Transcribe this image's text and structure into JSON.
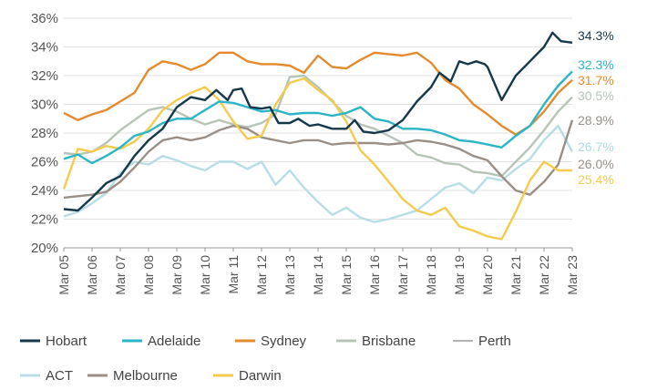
{
  "chart_data": {
    "type": "line",
    "ylim": [
      20,
      36
    ],
    "y_ticks": [
      "20%",
      "22%",
      "24%",
      "26%",
      "28%",
      "30%",
      "32%",
      "34%",
      "36%"
    ],
    "x_ticks": [
      "Mar 05",
      "Mar 06",
      "Mar 07",
      "Mar 08",
      "Mar 09",
      "Mar 10",
      "Mar 11",
      "Mar 12",
      "Mar 13",
      "Mar 14",
      "Mar 15",
      "Mar 16",
      "Mar 17",
      "Mar 18",
      "Mar 19",
      "Mar 20",
      "Mar 21",
      "Mar 22",
      "Mar 23"
    ],
    "xlim": [
      2005,
      2023
    ],
    "grid": "horizontal",
    "legend_position": "bottom",
    "series": [
      {
        "name": "Hobart",
        "color": "#15384a",
        "end_label": "34.3%",
        "end_label_color": "#15384a",
        "points": [
          [
            2005,
            22.7
          ],
          [
            2005.5,
            22.6
          ],
          [
            2006,
            23.5
          ],
          [
            2006.5,
            24.5
          ],
          [
            2007,
            25
          ],
          [
            2007.5,
            26.4
          ],
          [
            2008,
            27.5
          ],
          [
            2008.5,
            28.3
          ],
          [
            2009,
            29.8
          ],
          [
            2009.5,
            30.5
          ],
          [
            2010,
            30.3
          ],
          [
            2010.4,
            31
          ],
          [
            2010.8,
            30.3
          ],
          [
            2011,
            31
          ],
          [
            2011.3,
            31.1
          ],
          [
            2011.6,
            29.8
          ],
          [
            2012,
            29.7
          ],
          [
            2012.3,
            29.8
          ],
          [
            2012.6,
            28.7
          ],
          [
            2013,
            28.7
          ],
          [
            2013.3,
            29
          ],
          [
            2013.7,
            28.5
          ],
          [
            2014,
            28.6
          ],
          [
            2014.5,
            28.3
          ],
          [
            2015,
            28.3
          ],
          [
            2015.3,
            28.9
          ],
          [
            2015.6,
            28.1
          ],
          [
            2016,
            28
          ],
          [
            2016.5,
            28.2
          ],
          [
            2017,
            28.9
          ],
          [
            2017.5,
            30.2
          ],
          [
            2018,
            31.2
          ],
          [
            2018.3,
            32.2
          ],
          [
            2018.7,
            31.6
          ],
          [
            2019,
            33
          ],
          [
            2019.3,
            32.8
          ],
          [
            2019.6,
            33
          ],
          [
            2019.9,
            32.8
          ],
          [
            2020,
            32.6
          ],
          [
            2020.5,
            30.3
          ],
          [
            2021,
            32
          ],
          [
            2021.5,
            33
          ],
          [
            2022,
            34
          ],
          [
            2022.3,
            35
          ],
          [
            2022.6,
            34.4
          ],
          [
            2023,
            34.3
          ]
        ]
      },
      {
        "name": "Adelaide",
        "color": "#2bb5c7",
        "end_label": "32.3%",
        "end_label_color": "#2bb5c7",
        "points": [
          [
            2005,
            26.2
          ],
          [
            2005.5,
            26.5
          ],
          [
            2006,
            25.9
          ],
          [
            2006.5,
            26.4
          ],
          [
            2007,
            27
          ],
          [
            2007.5,
            27.8
          ],
          [
            2008,
            28.1
          ],
          [
            2008.5,
            28.7
          ],
          [
            2009,
            29
          ],
          [
            2009.5,
            29
          ],
          [
            2010,
            29.6
          ],
          [
            2010.5,
            30.2
          ],
          [
            2011,
            30.1
          ],
          [
            2011.5,
            29.8
          ],
          [
            2012,
            29.5
          ],
          [
            2012.5,
            29.6
          ],
          [
            2013,
            29.3
          ],
          [
            2013.5,
            29.4
          ],
          [
            2014,
            29.4
          ],
          [
            2014.5,
            29.2
          ],
          [
            2015,
            29.4
          ],
          [
            2015.5,
            29.8
          ],
          [
            2016,
            29
          ],
          [
            2016.5,
            28.8
          ],
          [
            2017,
            28.3
          ],
          [
            2017.5,
            28.3
          ],
          [
            2018,
            28.2
          ],
          [
            2018.5,
            27.9
          ],
          [
            2019,
            27.5
          ],
          [
            2019.5,
            27.4
          ],
          [
            2020,
            27.2
          ],
          [
            2020.5,
            27
          ],
          [
            2021,
            27.8
          ],
          [
            2021.5,
            28.5
          ],
          [
            2022,
            30
          ],
          [
            2022.5,
            31.3
          ],
          [
            2023,
            32.3
          ]
        ]
      },
      {
        "name": "Sydney",
        "color": "#e58b2e",
        "end_label": "31.7%",
        "end_label_color": "#e58b2e",
        "points": [
          [
            2005,
            29.4
          ],
          [
            2005.5,
            28.9
          ],
          [
            2006,
            29.3
          ],
          [
            2006.5,
            29.6
          ],
          [
            2007,
            30.2
          ],
          [
            2007.5,
            30.8
          ],
          [
            2008,
            32.4
          ],
          [
            2008.5,
            33
          ],
          [
            2009,
            32.8
          ],
          [
            2009.5,
            32.4
          ],
          [
            2010,
            32.8
          ],
          [
            2010.5,
            33.6
          ],
          [
            2011,
            33.6
          ],
          [
            2011.5,
            33
          ],
          [
            2012,
            32.8
          ],
          [
            2012.5,
            32.8
          ],
          [
            2013,
            32.7
          ],
          [
            2013.5,
            32.2
          ],
          [
            2014,
            33.4
          ],
          [
            2014.5,
            32.6
          ],
          [
            2015,
            32.5
          ],
          [
            2015.5,
            33.1
          ],
          [
            2016,
            33.6
          ],
          [
            2016.5,
            33.5
          ],
          [
            2017,
            33.4
          ],
          [
            2017.5,
            33.6
          ],
          [
            2018,
            32.9
          ],
          [
            2018.5,
            31.7
          ],
          [
            2019,
            31.1
          ],
          [
            2019.5,
            30
          ],
          [
            2020,
            29.3
          ],
          [
            2020.5,
            28.5
          ],
          [
            2021,
            27.9
          ],
          [
            2021.5,
            28.5
          ],
          [
            2022,
            29.5
          ],
          [
            2022.5,
            30.8
          ],
          [
            2023,
            31.7
          ]
        ]
      },
      {
        "name": "Brisbane",
        "color": "#b7c4b8",
        "end_label": "30.5%",
        "end_label_color": "#b7c4b8",
        "points": [
          [
            2005,
            26.6
          ],
          [
            2005.5,
            26.5
          ],
          [
            2006,
            26.7
          ],
          [
            2006.5,
            27.3
          ],
          [
            2007,
            28.2
          ],
          [
            2007.5,
            28.9
          ],
          [
            2008,
            29.6
          ],
          [
            2008.5,
            29.8
          ],
          [
            2009,
            29.5
          ],
          [
            2009.5,
            29
          ],
          [
            2010,
            28.6
          ],
          [
            2010.5,
            28.9
          ],
          [
            2011,
            28.6
          ],
          [
            2011.5,
            28.4
          ],
          [
            2012,
            28.7
          ],
          [
            2012.5,
            29.3
          ],
          [
            2013,
            31.9
          ],
          [
            2013.5,
            32
          ],
          [
            2014,
            31.2
          ],
          [
            2014.5,
            30.2
          ],
          [
            2015,
            29.2
          ],
          [
            2015.5,
            28.6
          ],
          [
            2016,
            28.3
          ],
          [
            2016.5,
            27.8
          ],
          [
            2017,
            27.3
          ],
          [
            2017.5,
            26.5
          ],
          [
            2018,
            26.3
          ],
          [
            2018.5,
            25.9
          ],
          [
            2019,
            25.8
          ],
          [
            2019.5,
            25.3
          ],
          [
            2020,
            25.2
          ],
          [
            2020.5,
            25
          ],
          [
            2021,
            26
          ],
          [
            2021.5,
            27
          ],
          [
            2022,
            28.2
          ],
          [
            2022.5,
            29.5
          ],
          [
            2023,
            30.5
          ]
        ]
      },
      {
        "name": "Perth",
        "color": "#9a9a9a",
        "end_label": "",
        "end_label_color": "#9a9a9a",
        "points": []
      },
      {
        "name": "ACT",
        "color": "#b7dde6",
        "end_label": "26.7%",
        "end_label_color": "#aadbe6",
        "points": [
          [
            2005,
            22.2
          ],
          [
            2005.5,
            22.5
          ],
          [
            2006,
            23.1
          ],
          [
            2006.5,
            23.8
          ],
          [
            2007,
            25.2
          ],
          [
            2007.5,
            26
          ],
          [
            2008,
            25.8
          ],
          [
            2008.5,
            26.4
          ],
          [
            2009,
            26.1
          ],
          [
            2009.5,
            25.7
          ],
          [
            2010,
            25.4
          ],
          [
            2010.5,
            26
          ],
          [
            2011,
            26
          ],
          [
            2011.5,
            25.5
          ],
          [
            2012,
            26
          ],
          [
            2012.5,
            24.4
          ],
          [
            2013,
            25.4
          ],
          [
            2013.5,
            24.2
          ],
          [
            2014,
            23.2
          ],
          [
            2014.5,
            22.3
          ],
          [
            2015,
            22.8
          ],
          [
            2015.5,
            22.1
          ],
          [
            2016,
            21.8
          ],
          [
            2016.5,
            22
          ],
          [
            2017,
            22.3
          ],
          [
            2017.5,
            22.6
          ],
          [
            2018,
            23.4
          ],
          [
            2018.5,
            24.2
          ],
          [
            2019,
            24.5
          ],
          [
            2019.5,
            23.8
          ],
          [
            2020,
            24.9
          ],
          [
            2020.5,
            24.7
          ],
          [
            2021,
            25.5
          ],
          [
            2021.5,
            26.2
          ],
          [
            2022,
            27.5
          ],
          [
            2022.5,
            28.5
          ],
          [
            2023,
            26.7
          ]
        ]
      },
      {
        "name": "Melbourne",
        "color": "#9a8f87",
        "end_label": "28.9%",
        "end_label_color": "#9a8f87",
        "points": [
          [
            2005,
            23.5
          ],
          [
            2005.5,
            23.6
          ],
          [
            2006,
            23.7
          ],
          [
            2006.5,
            23.9
          ],
          [
            2007,
            24.6
          ],
          [
            2007.5,
            25.6
          ],
          [
            2008,
            26.7
          ],
          [
            2008.5,
            27.5
          ],
          [
            2009,
            27.7
          ],
          [
            2009.5,
            27.5
          ],
          [
            2010,
            27.7
          ],
          [
            2010.5,
            28.2
          ],
          [
            2011,
            28.5
          ],
          [
            2011.5,
            28.3
          ],
          [
            2012,
            27.7
          ],
          [
            2012.5,
            27.5
          ],
          [
            2013,
            27.3
          ],
          [
            2013.5,
            27.5
          ],
          [
            2014,
            27.5
          ],
          [
            2014.5,
            27.2
          ],
          [
            2015,
            27.3
          ],
          [
            2015.5,
            27.3
          ],
          [
            2016,
            27.3
          ],
          [
            2016.5,
            27.2
          ],
          [
            2017,
            27.3
          ],
          [
            2017.5,
            27.5
          ],
          [
            2018,
            27.4
          ],
          [
            2018.5,
            27.2
          ],
          [
            2019,
            26.9
          ],
          [
            2019.5,
            26.4
          ],
          [
            2020,
            26.1
          ],
          [
            2020.5,
            25
          ],
          [
            2021,
            24
          ],
          [
            2021.5,
            23.7
          ],
          [
            2022,
            24.6
          ],
          [
            2022.5,
            25.8
          ],
          [
            2023,
            28.9
          ]
        ]
      },
      {
        "name": "Darwin",
        "color": "#f5cb4b",
        "end_label": "25.4%",
        "end_label_color": "#f5cb4b",
        "points": [
          [
            2005,
            24.1
          ],
          [
            2005.5,
            26.9
          ],
          [
            2006,
            26.7
          ],
          [
            2006.5,
            27.1
          ],
          [
            2007,
            26.9
          ],
          [
            2007.5,
            27.4
          ],
          [
            2008,
            28.3
          ],
          [
            2008.5,
            29.6
          ],
          [
            2009,
            30.3
          ],
          [
            2009.5,
            30.8
          ],
          [
            2010,
            31.2
          ],
          [
            2010.5,
            30.3
          ],
          [
            2011,
            28.8
          ],
          [
            2011.5,
            27.6
          ],
          [
            2012,
            27.8
          ],
          [
            2012.5,
            30
          ],
          [
            2013,
            31.5
          ],
          [
            2013.5,
            31.8
          ],
          [
            2014,
            31
          ],
          [
            2014.5,
            30.3
          ],
          [
            2015,
            28.8
          ],
          [
            2015.5,
            26.8
          ],
          [
            2016,
            25.8
          ],
          [
            2016.5,
            24.6
          ],
          [
            2017,
            23.4
          ],
          [
            2017.5,
            22.6
          ],
          [
            2018,
            22.3
          ],
          [
            2018.5,
            22.8
          ],
          [
            2019,
            21.5
          ],
          [
            2019.5,
            21.2
          ],
          [
            2020,
            20.8
          ],
          [
            2020.5,
            20.6
          ],
          [
            2021,
            22.5
          ],
          [
            2021.5,
            24.7
          ],
          [
            2022,
            26
          ],
          [
            2022.5,
            25.4
          ],
          [
            2023,
            25.4
          ]
        ]
      }
    ],
    "end_label_extra": [
      {
        "text": "26.0%",
        "color": "#9a8f87"
      }
    ],
    "legend": [
      {
        "name": "Hobart",
        "color": "#15384a"
      },
      {
        "name": "Adelaide",
        "color": "#2bb5c7"
      },
      {
        "name": "Sydney",
        "color": "#e58b2e"
      },
      {
        "name": "Brisbane",
        "color": "#b7c4b8"
      },
      {
        "name": "Perth",
        "color": "#9a9a9a"
      },
      {
        "name": "ACT",
        "color": "#b7dde6"
      },
      {
        "name": "Melbourne",
        "color": "#9a8f87"
      },
      {
        "name": "Darwin",
        "color": "#f5cb4b"
      }
    ]
  }
}
